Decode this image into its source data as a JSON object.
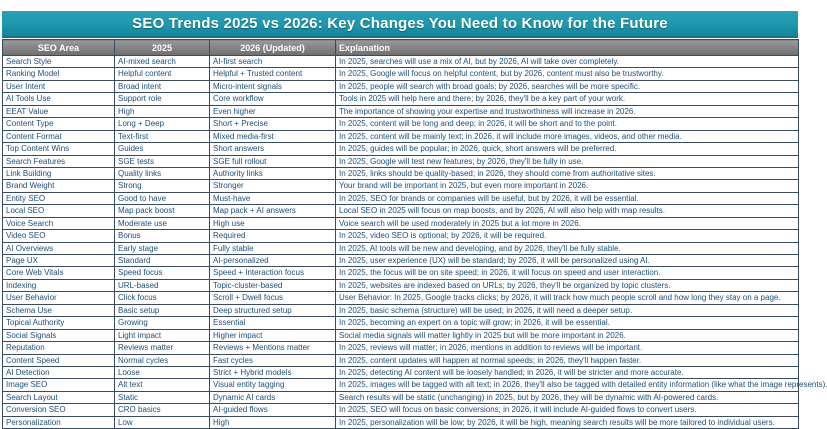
{
  "page": {
    "title": "SEO Trends 2025 vs 2026: Key Changes You Need to Know for the Future"
  },
  "colors": {
    "title_bar": "#1E97AD",
    "header_bg": "#7F7F7F",
    "cell_text": "#1F4E79",
    "border": "#3B4A63"
  },
  "table": {
    "columns": [
      "SEO Area",
      "2025",
      "2026 (Updated)",
      "Explanation"
    ],
    "rows": [
      {
        "area": "Search Style",
        "y2025": "AI-mixed search",
        "y2026": "AI-first search",
        "explanation": "In 2025, searches will use a mix of AI, but by 2026, AI will take over completely."
      },
      {
        "area": "Ranking Model",
        "y2025": "Helpful content",
        "y2026": "Helpful + Trusted content",
        "explanation": "In 2025, Google will focus on helpful content, but by 2026, content must also be trustworthy."
      },
      {
        "area": "User Intent",
        "y2025": "Broad intent",
        "y2026": "Micro-intent signals",
        "explanation": "In 2025, people will search with broad goals; by 2026, searches will be more specific."
      },
      {
        "area": "AI Tools Use",
        "y2025": "Support role",
        "y2026": "Core workflow",
        "explanation": "Tools in 2025 will help here and there; by 2026, they'll be a key part of your work."
      },
      {
        "area": "EEAT Value",
        "y2025": "High",
        "y2026": "Even higher",
        "explanation": "The importance of showing your expertise and trustworthiness will increase in 2026."
      },
      {
        "area": "Content Type",
        "y2025": "Long + Deep",
        "y2026": "Short + Precise",
        "explanation": "In 2025, content will be long and deep; in 2026, it will be short and to the point."
      },
      {
        "area": "Content Format",
        "y2025": "Text-first",
        "y2026": "Mixed media-first",
        "explanation": "In 2025, content will be mainly text; in 2026, it will include more images, videos, and other media."
      },
      {
        "area": "Top Content Wins",
        "y2025": "Guides",
        "y2026": "Short answers",
        "explanation": "In 2025, guides will be popular; in 2026, quick, short answers will be preferred."
      },
      {
        "area": "Search Features",
        "y2025": "SGE tests",
        "y2026": "SGE full rollout",
        "explanation": "In 2025, Google will test new features; by 2026, they'll be fully in use."
      },
      {
        "area": "Link Building",
        "y2025": "Quality links",
        "y2026": "Authority links",
        "explanation": "In 2025, links should be quality-based; in 2026, they should come from authoritative sites."
      },
      {
        "area": "Brand Weight",
        "y2025": "Strong",
        "y2026": "Stronger",
        "explanation": "Your brand will be important in 2025, but even more important in 2026."
      },
      {
        "area": "Entity SEO",
        "y2025": "Good to have",
        "y2026": "Must-have",
        "explanation": "In 2025, SEO for brands or companies will be useful, but by 2026, it will be essential."
      },
      {
        "area": "Local SEO",
        "y2025": "Map pack boost",
        "y2026": "Map pack + AI answers",
        "explanation": "Local SEO in 2025 will focus on map boosts, and by 2026, AI will also help with map results."
      },
      {
        "area": "Voice Search",
        "y2025": "Moderate use",
        "y2026": "High use",
        "explanation": "Voice search will be used moderately in 2025 but a lot more in 2026."
      },
      {
        "area": "Video SEO",
        "y2025": "Bonus",
        "y2026": "Required",
        "explanation": "In 2025, video SEO is optional; by 2026, it will be required."
      },
      {
        "area": "AI Overviews",
        "y2025": "Early stage",
        "y2026": "Fully stable",
        "explanation": "In 2025, AI tools will be new and developing, and by 2026, they'll be fully stable."
      },
      {
        "area": "Page UX",
        "y2025": "Standard",
        "y2026": "AI-personalized",
        "explanation": "In 2025, user experience (UX) will be standard; by 2026, it will be personalized using AI."
      },
      {
        "area": "Core Web Vitals",
        "y2025": "Speed focus",
        "y2026": "Speed + Interaction focus",
        "explanation": "In 2025, the focus will be on site speed; in 2026, it will focus on speed and user interaction."
      },
      {
        "area": "Indexing",
        "y2025": "URL-based",
        "y2026": "Topic-cluster-based",
        "explanation": "In 2025, websites are indexed based on URLs; by 2026, they'll be organized by topic clusters."
      },
      {
        "area": "User Behavior",
        "y2025": "Click focus",
        "y2026": "Scroll + Dwell focus",
        "explanation": "User Behavior: In 2025, Google tracks clicks; by 2026, it will track how much people scroll and how long they stay on a page."
      },
      {
        "area": "Schema Use",
        "y2025": "Basic setup",
        "y2026": "Deep structured setup",
        "explanation": "In 2025, basic schema (structure) will be used; in 2026, it will need a deeper setup."
      },
      {
        "area": "Topical Authority",
        "y2025": "Growing",
        "y2026": "Essential",
        "explanation": "In 2025, becoming an expert on a topic will grow; in 2026, it will be essential."
      },
      {
        "area": "Social Signals",
        "y2025": "Light impact",
        "y2026": "Higher impact",
        "explanation": "Social media signals will matter lightly in 2025 but will be more important in 2026."
      },
      {
        "area": "Reputation",
        "y2025": "Reviews matter",
        "y2026": "Reviews + Mentions matter",
        "explanation": "In 2025, reviews will matter; in 2026, mentions in addition to reviews will be important."
      },
      {
        "area": "Content Speed",
        "y2025": "Normal cycles",
        "y2026": "Fast cycles",
        "explanation": "In 2025, content updates will happen at normal speeds; in 2026, they'll happen faster."
      },
      {
        "area": "AI Detection",
        "y2025": "Loose",
        "y2026": "Strict + Hybrid models",
        "explanation": "In 2025, detecting AI content will be loosely handled; in 2026, it will be stricter and more accurate."
      },
      {
        "area": "Image SEO",
        "y2025": "Alt text",
        "y2026": "Visual entity tagging",
        "explanation": "In 2025, images will be tagged with alt text; in 2026, they'll also be tagged with detailed entity information (like what the image represents)."
      },
      {
        "area": "Search Layout",
        "y2025": "Static",
        "y2026": "Dynamic AI cards",
        "explanation": "Search results will be static (unchanging) in 2025, but by 2026, they will be dynamic with AI-powered cards."
      },
      {
        "area": "Conversion SEO",
        "y2025": "CRO basics",
        "y2026": "AI-guided flows",
        "explanation": "In 2025, SEO will focus on basic conversions; in 2026, it will include AI-guided flows to convert users."
      },
      {
        "area": "Personalization",
        "y2025": "Low",
        "y2026": "High",
        "explanation": "In 2025, personalization will be low; by 2026, it will be high, meaning search results will be more tailored to individual users."
      }
    ]
  }
}
